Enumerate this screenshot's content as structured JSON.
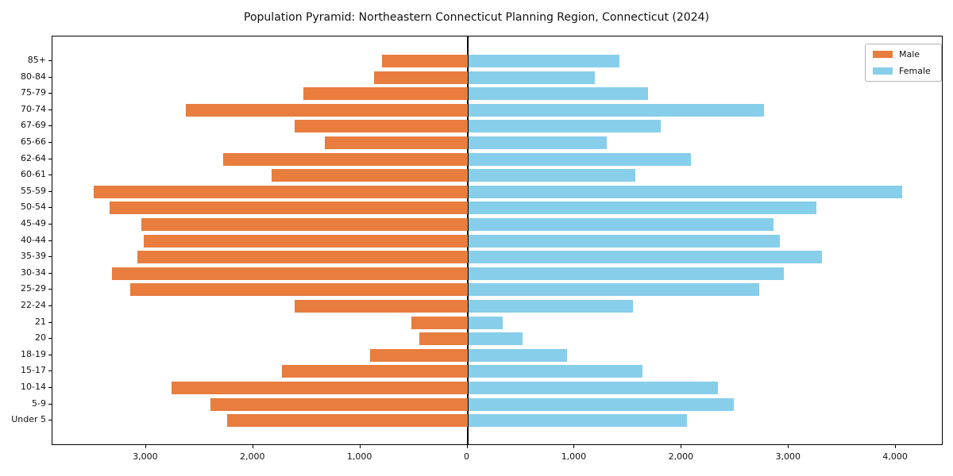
{
  "chart_data": {
    "type": "bar",
    "subtype": "population-pyramid-horizontal",
    "title": "Population Pyramid: Northeastern Connecticut Planning Region, Connecticut (2024)",
    "categories_top_to_bottom": [
      "85+",
      "80-84",
      "75-79",
      "70-74",
      "67-69",
      "65-66",
      "62-64",
      "60-61",
      "55-59",
      "50-54",
      "45-49",
      "40-44",
      "35-39",
      "30-34",
      "25-29",
      "22-24",
      "21",
      "20",
      "18-19",
      "15-17",
      "10-14",
      "5-9",
      "Under 5"
    ],
    "series": [
      {
        "name": "Male",
        "side": "left",
        "color": "#e87d3e",
        "values": [
          800,
          870,
          1530,
          2630,
          1610,
          1330,
          2280,
          1830,
          3490,
          3340,
          3040,
          3020,
          3080,
          3320,
          3150,
          1610,
          520,
          450,
          910,
          1730,
          2760,
          2400,
          2240
        ]
      },
      {
        "name": "Female",
        "side": "right",
        "color": "#87ceeb",
        "values": [
          1410,
          1180,
          1680,
          2760,
          1800,
          1290,
          2080,
          1560,
          4050,
          3250,
          2850,
          2910,
          3300,
          2950,
          2720,
          1540,
          320,
          510,
          920,
          1630,
          2330,
          2480,
          2040
        ]
      }
    ],
    "x_ticks": {
      "values": [
        -3000,
        -2000,
        -1000,
        0,
        1000,
        2000,
        3000,
        4000
      ],
      "labels": [
        "3,000",
        "2,000",
        "1,000",
        "0",
        "1,000",
        "2,000",
        "3,000",
        "4,000"
      ]
    },
    "xlim": [
      -3874,
      4444
    ],
    "grid": "off",
    "legend_position": "upper-right",
    "axis_color": "#000000",
    "zero_line_color": "#000000"
  }
}
